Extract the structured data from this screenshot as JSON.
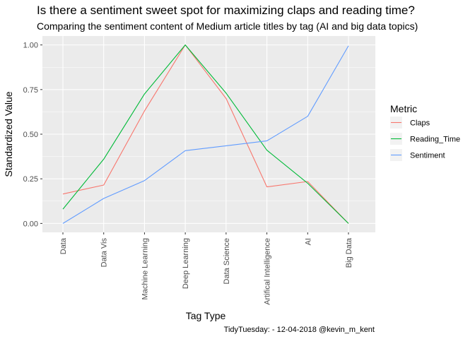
{
  "chart_data": {
    "type": "line",
    "title": "Is there a sentiment sweet spot for maximizing claps and reading time?",
    "subtitle": "Comparing the sentiment content of Medium article titles by tag (AI and big data topics)",
    "xlabel": "Tag Type",
    "ylabel": "Standardized Value",
    "caption": "TidyTuesday: - 12-04-2018 @kevin_m_kent",
    "categories": [
      "Data",
      "Data Vis",
      "Machine Learning",
      "Deep Learning",
      "Data Science",
      "Artifical Intelligence",
      "AI",
      "Big Data"
    ],
    "ylim": [
      -0.05,
      1.05
    ],
    "yticks": [
      0.0,
      0.25,
      0.5,
      0.75,
      1.0
    ],
    "ytick_labels": [
      "0.00",
      "0.25",
      "0.50",
      "0.75",
      "1.00"
    ],
    "grid": true,
    "legend": {
      "title": "Metric",
      "position": "right"
    },
    "series": [
      {
        "name": "Claps",
        "color": "#F8766D",
        "values": [
          0.165,
          0.215,
          0.63,
          1.0,
          0.7,
          0.205,
          0.235,
          0.0
        ]
      },
      {
        "name": "Reading_Time",
        "color": "#00BA38",
        "values": [
          0.08,
          0.36,
          0.725,
          1.0,
          0.73,
          0.41,
          0.225,
          0.0
        ]
      },
      {
        "name": "Sentiment",
        "color": "#619CFF",
        "values": [
          0.0,
          0.14,
          0.24,
          0.408,
          0.435,
          0.463,
          0.6,
          0.995
        ]
      }
    ]
  }
}
